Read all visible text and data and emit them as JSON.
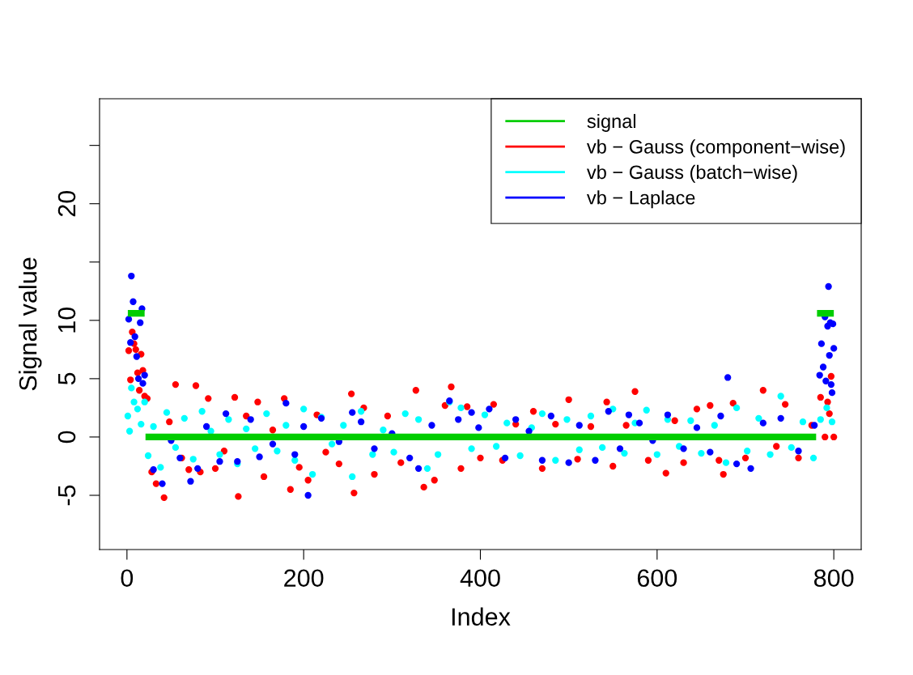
{
  "chart_data": {
    "type": "scatter",
    "xlabel": "Index",
    "ylabel": "Signal value",
    "xlim": [
      -31,
      831
    ],
    "ylim": [
      -9.65,
      29.0
    ],
    "xticks": [
      0,
      200,
      400,
      600,
      800
    ],
    "yticks": [
      -5,
      0,
      5,
      10,
      {
        "value": 15,
        "label": null
      },
      20,
      {
        "value": 25,
        "label": null
      }
    ],
    "grid": false,
    "legend": "top right",
    "marker": "circle",
    "series": [
      {
        "name": "vb − Gauss (component−wise)",
        "color": "#ff0000",
        "x": [
          2,
          4,
          6,
          8,
          10,
          12,
          14,
          16,
          18,
          20,
          23,
          28,
          33,
          42,
          48,
          55,
          62,
          70,
          78,
          83,
          92,
          100,
          110,
          122,
          126,
          135,
          148,
          155,
          165,
          178,
          185,
          195,
          205,
          215,
          225,
          240,
          254,
          257,
          268,
          280,
          295,
          310,
          327,
          336,
          348,
          360,
          367,
          378,
          385,
          400,
          415,
          425,
          440,
          460,
          470,
          485,
          500,
          510,
          525,
          543,
          550,
          565,
          575,
          590,
          610,
          620,
          630,
          645,
          660,
          670,
          675,
          686,
          700,
          720,
          735,
          745,
          760,
          775,
          785,
          790,
          793,
          795,
          797,
          800
        ],
        "values": [
          7.4,
          4.9,
          9.0,
          8.0,
          7.5,
          5.5,
          4.0,
          7.1,
          5.7,
          3.5,
          3.3,
          -3.0,
          -4.0,
          -5.2,
          1.3,
          4.5,
          -1.8,
          -2.8,
          4.4,
          -3.0,
          3.3,
          -2.7,
          -1.2,
          3.4,
          -5.1,
          1.8,
          3.0,
          -3.4,
          0.6,
          3.3,
          -4.5,
          -2.6,
          -3.7,
          1.9,
          -1.3,
          -2.3,
          3.7,
          -4.8,
          2.5,
          -3.2,
          1.8,
          -2.2,
          4.0,
          -4.3,
          -3.7,
          2.7,
          4.3,
          -2.7,
          2.6,
          -1.8,
          2.8,
          -2.0,
          1.1,
          2.2,
          -2.7,
          1.1,
          3.2,
          -1.9,
          0.9,
          3.0,
          -2.5,
          1.0,
          3.9,
          -2.0,
          -3.1,
          1.4,
          -2.2,
          2.4,
          2.7,
          -2.0,
          -3.2,
          2.9,
          -1.8,
          4.0,
          -0.8,
          2.8,
          -1.8,
          1.0,
          3.4,
          0,
          3.0,
          2.0,
          5.2,
          0
        ]
      },
      {
        "name": "vb − Gauss (batch−wise)",
        "color": "#00ffff",
        "x": [
          1,
          3,
          5,
          8,
          12,
          16,
          20,
          24,
          30,
          38,
          45,
          55,
          65,
          75,
          85,
          95,
          105,
          115,
          125,
          135,
          145,
          158,
          170,
          180,
          190,
          200,
          210,
          220,
          232,
          245,
          255,
          265,
          278,
          290,
          302,
          315,
          330,
          340,
          352,
          365,
          378,
          390,
          405,
          418,
          430,
          445,
          458,
          470,
          485,
          498,
          512,
          525,
          538,
          550,
          563,
          575,
          588,
          600,
          612,
          625,
          638,
          650,
          665,
          678,
          690,
          702,
          715,
          728,
          740,
          752,
          765,
          777,
          785,
          792,
          798
        ],
        "values": [
          1.8,
          0.5,
          4.2,
          3.0,
          2.4,
          1.1,
          3.0,
          -1.6,
          0.9,
          -2.6,
          2.1,
          -0.9,
          1.6,
          -1.9,
          2.2,
          0.5,
          -1.5,
          1.5,
          -2.3,
          0.7,
          -1.0,
          2.0,
          -1.2,
          1.0,
          -2.0,
          2.4,
          -3.2,
          1.7,
          -0.6,
          1.0,
          -3.4,
          2.2,
          -1.5,
          0.6,
          -1.3,
          2.0,
          1.5,
          -2.7,
          -1.5,
          3.0,
          2.5,
          -1.0,
          1.9,
          -0.8,
          1.2,
          -1.6,
          0.8,
          2.0,
          -2.0,
          1.5,
          -1.1,
          1.8,
          -0.9,
          2.4,
          -1.4,
          1.2,
          2.3,
          -1.5,
          1.5,
          -0.8,
          1.4,
          -1.4,
          1.0,
          -2.2,
          2.5,
          -1.2,
          1.6,
          -1.5,
          3.5,
          -0.9,
          1.3,
          -1.8,
          1.5,
          2.5,
          1.3
        ]
      },
      {
        "name": "vb − Laplace",
        "color": "#0000ff",
        "x": [
          2,
          4,
          5,
          7,
          9,
          11,
          13,
          15,
          17,
          18,
          20,
          30,
          40,
          50,
          60,
          72,
          80,
          90,
          105,
          112,
          125,
          140,
          150,
          165,
          180,
          190,
          200,
          205,
          220,
          240,
          255,
          265,
          280,
          300,
          320,
          330,
          345,
          365,
          375,
          390,
          398,
          410,
          428,
          440,
          455,
          470,
          480,
          500,
          512,
          530,
          545,
          558,
          568,
          580,
          595,
          612,
          630,
          645,
          660,
          672,
          680,
          690,
          706,
          720,
          740,
          760,
          778,
          784,
          786,
          788,
          790,
          791,
          793,
          794,
          795,
          796,
          797,
          798,
          799,
          800
        ],
        "values": [
          10.1,
          8.1,
          13.8,
          11.6,
          8.6,
          6.9,
          5.0,
          9.8,
          11.0,
          4.6,
          5.3,
          -2.8,
          -4.0,
          -0.3,
          -1.8,
          -3.8,
          -2.7,
          0.9,
          -2.1,
          2.0,
          -2.1,
          1.5,
          -1.7,
          -0.6,
          2.9,
          -1.5,
          0.9,
          -5.0,
          1.6,
          -0.4,
          2.1,
          1.3,
          -1.0,
          0.3,
          -1.8,
          -2.7,
          1.0,
          3.1,
          1.5,
          2.1,
          0.8,
          2.4,
          -1.8,
          1.5,
          0.5,
          -2.0,
          1.8,
          -2.2,
          1.0,
          -2.0,
          2.2,
          -1.0,
          1.9,
          1.2,
          -0.3,
          1.9,
          -1.0,
          0.8,
          -1.3,
          1.8,
          5.1,
          -2.3,
          -2.7,
          1.2,
          1.6,
          -1.2,
          1.0,
          5.3,
          8.0,
          6.0,
          10.3,
          4.8,
          9.5,
          12.9,
          7.0,
          9.8,
          4.5,
          3.8,
          9.7,
          7.6
        ]
      },
      {
        "name": "signal",
        "type": "line",
        "marker": "none",
        "color": "#00cd00",
        "x": [
          1,
          20,
          20.5,
          21,
          780,
          780.5,
          781,
          800
        ],
        "values": [
          10.6,
          10.6,
          null,
          0,
          0,
          null,
          10.6,
          10.6
        ]
      }
    ]
  }
}
